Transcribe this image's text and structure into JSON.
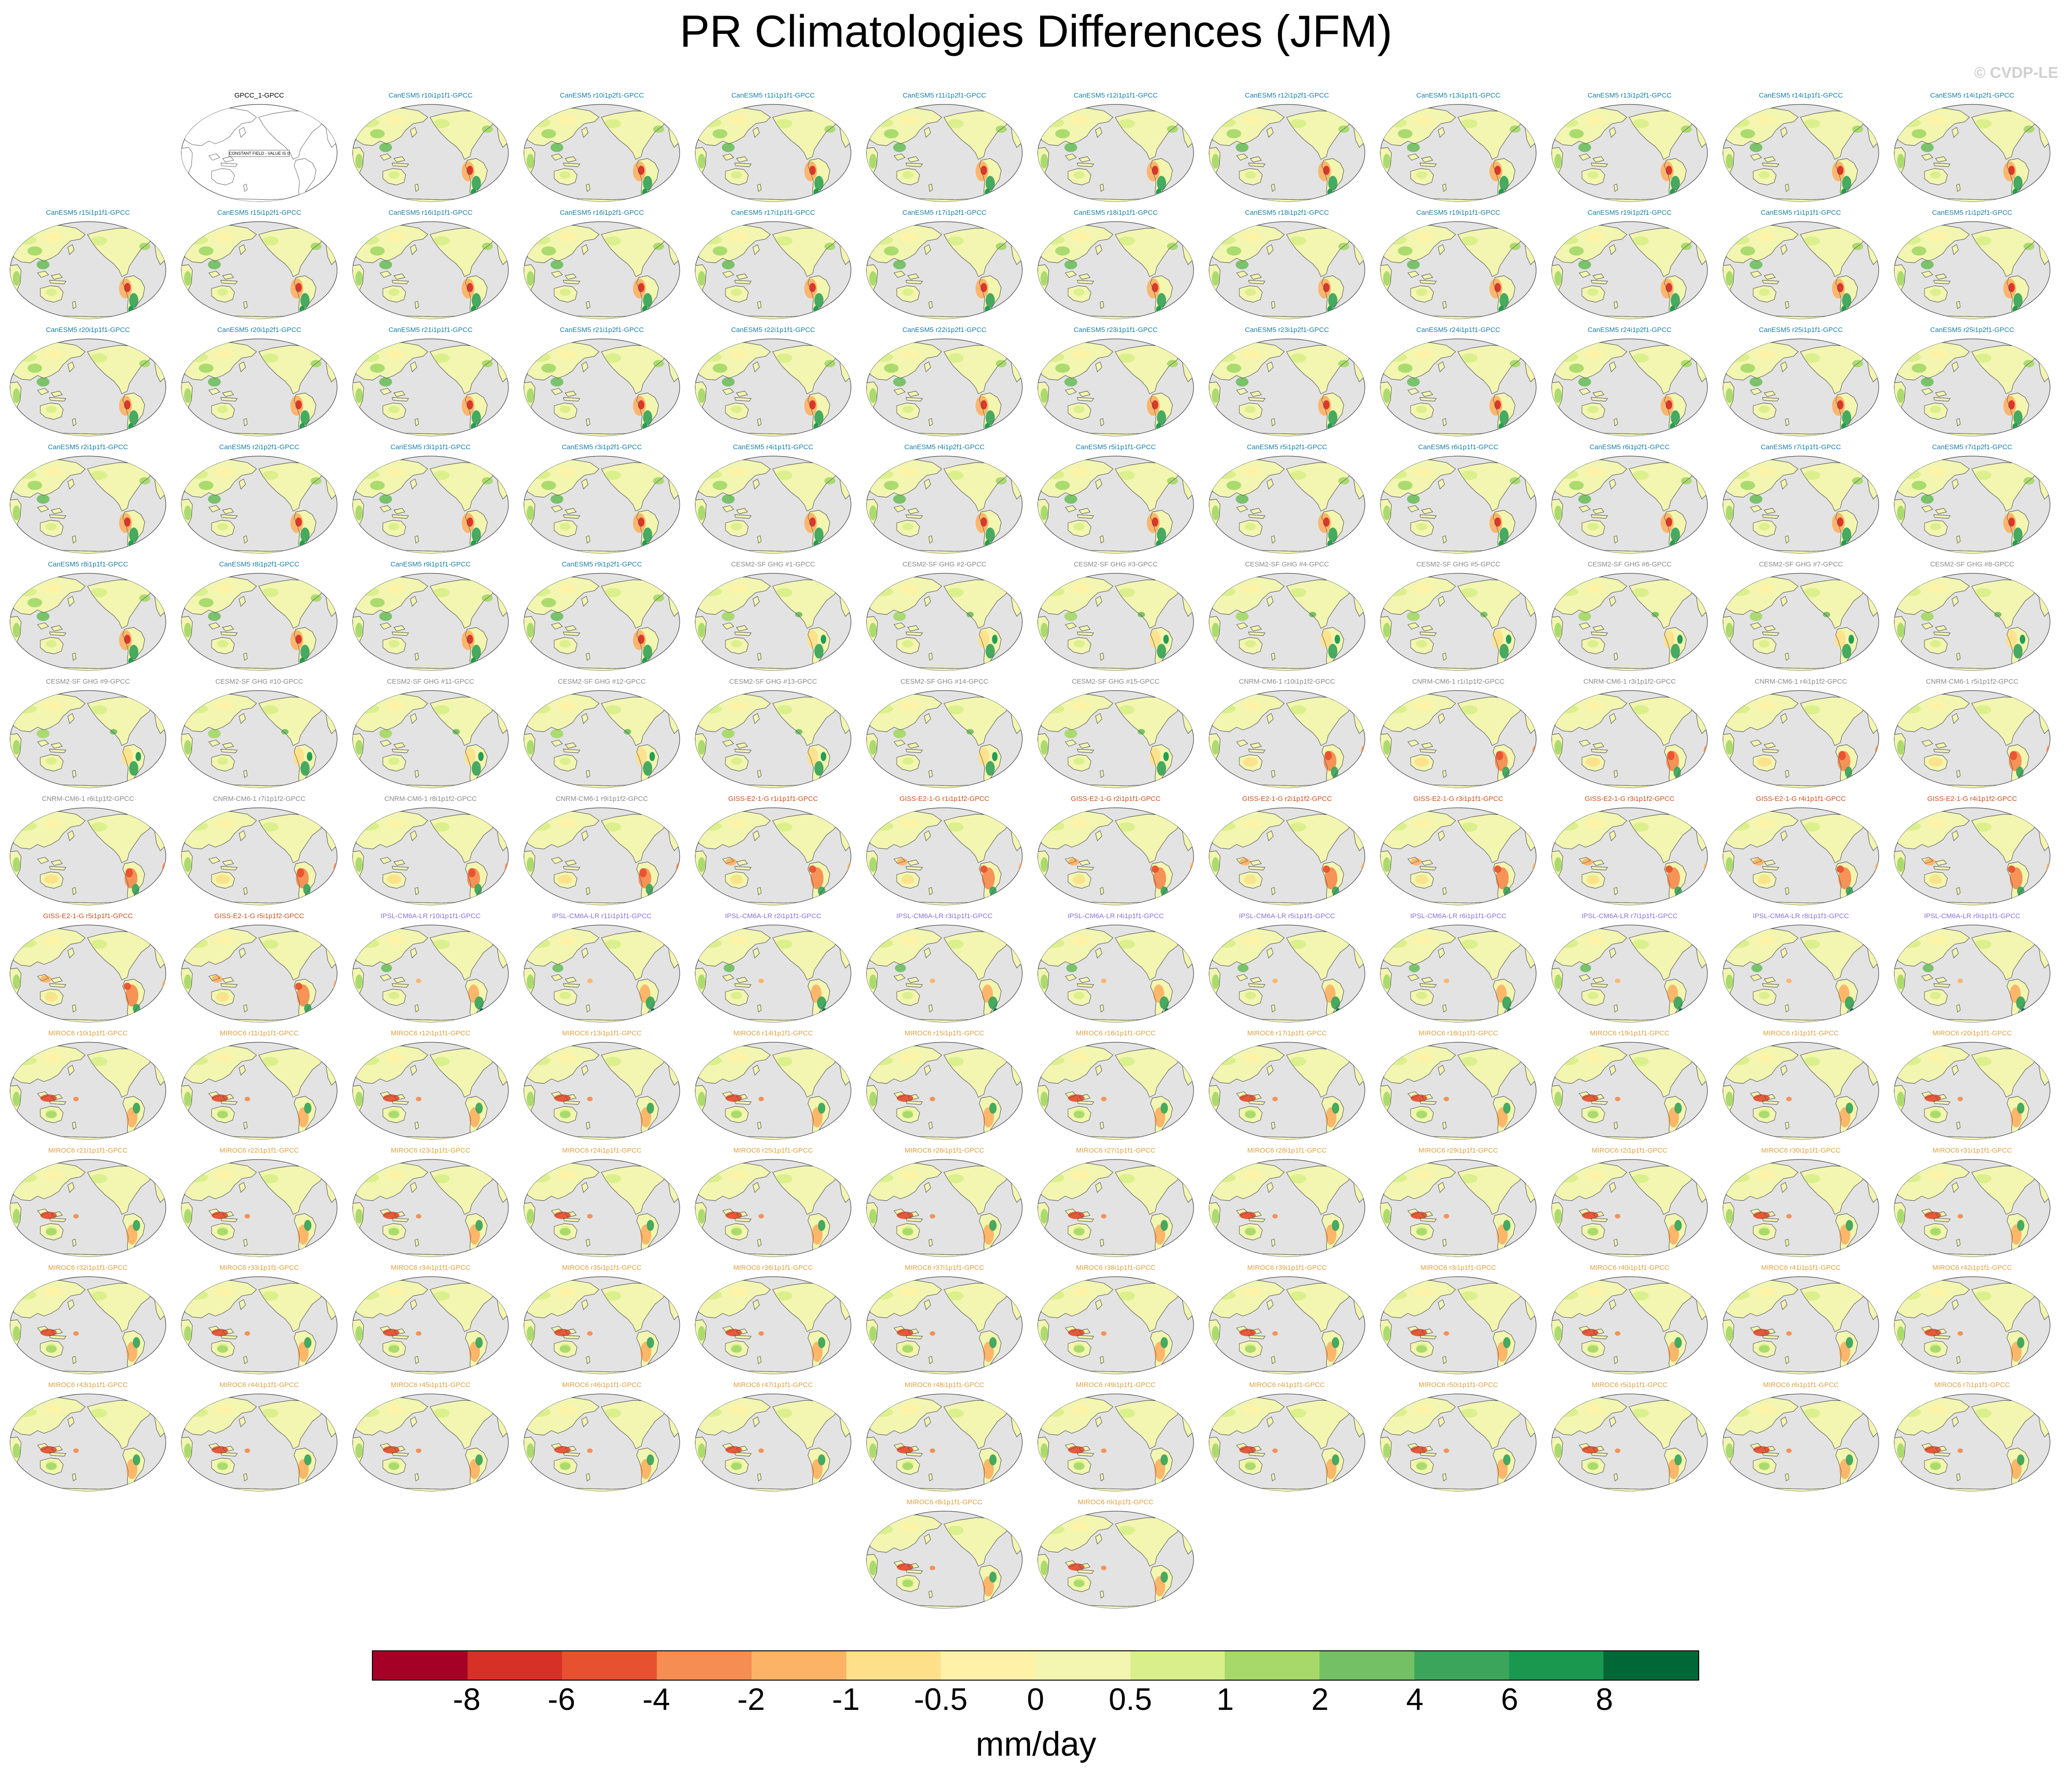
{
  "title": "PR Climatologies Differences (JFM)",
  "watermark": "© CVDP-LE",
  "colors": {
    "ocean": "#e3e3e3",
    "coast": "#555555",
    "model_title_colors": {
      "GPCC": "#000000",
      "CanESM5": "#1a7fa6",
      "CESM2-SF": "#8a8a8a",
      "CNRM-CM6-1": "#8a8a8a",
      "GISS-E2-1-G": "#c8501e",
      "IPSL-CM6A-LR": "#8a72d8",
      "MIROC6": "#e0a040"
    }
  },
  "chart_data": {
    "type": "heatmap",
    "description_units": "mm/day",
    "colorbar": {
      "unit_label": "mm/day",
      "tick_labels": [
        "-8",
        "-6",
        "-4",
        "-2",
        "-1",
        "-0.5",
        "0",
        "0.5",
        "1",
        "2",
        "4",
        "6",
        "8"
      ],
      "colors": [
        "#a50026",
        "#d73027",
        "#e8512f",
        "#f68d52",
        "#fdb366",
        "#fee08b",
        "#fff2a8",
        "#f2f6b0",
        "#d9ef8b",
        "#a6d96a",
        "#74c064",
        "#3ca55c",
        "#1a9850",
        "#006837"
      ]
    },
    "panels": [
      {
        "title": "GPCC_1-GPCC",
        "model": "GPCC",
        "annotation": "CONSTANT FIELD - VALUE IS 0"
      },
      {
        "title": "CanESM5 r10i1p1f1-GPCC",
        "model": "CanESM5"
      },
      {
        "title": "CanESM5 r10i1p2f1-GPCC",
        "model": "CanESM5"
      },
      {
        "title": "CanESM5 r11i1p1f1-GPCC",
        "model": "CanESM5"
      },
      {
        "title": "CanESM5 r11i1p2f1-GPCC",
        "model": "CanESM5"
      },
      {
        "title": "CanESM5 r12i1p1f1-GPCC",
        "model": "CanESM5"
      },
      {
        "title": "CanESM5 r12i1p2f1-GPCC",
        "model": "CanESM5"
      },
      {
        "title": "CanESM5 r13i1p1f1-GPCC",
        "model": "CanESM5"
      },
      {
        "title": "CanESM5 r13i1p2f1-GPCC",
        "model": "CanESM5"
      },
      {
        "title": "CanESM5 r14i1p1f1-GPCC",
        "model": "CanESM5"
      },
      {
        "title": "CanESM5 r14i1p2f1-GPCC",
        "model": "CanESM5"
      },
      {
        "title": "CanESM5 r15i1p1f1-GPCC",
        "model": "CanESM5"
      },
      {
        "title": "CanESM5 r15i1p2f1-GPCC",
        "model": "CanESM5"
      },
      {
        "title": "CanESM5 r16i1p1f1-GPCC",
        "model": "CanESM5"
      },
      {
        "title": "CanESM5 r16i1p2f1-GPCC",
        "model": "CanESM5"
      },
      {
        "title": "CanESM5 r17i1p1f1-GPCC",
        "model": "CanESM5"
      },
      {
        "title": "CanESM5 r17i1p2f1-GPCC",
        "model": "CanESM5"
      },
      {
        "title": "CanESM5 r18i1p1f1-GPCC",
        "model": "CanESM5"
      },
      {
        "title": "CanESM5 r18i1p2f1-GPCC",
        "model": "CanESM5"
      },
      {
        "title": "CanESM5 r19i1p1f1-GPCC",
        "model": "CanESM5"
      },
      {
        "title": "CanESM5 r19i1p2f1-GPCC",
        "model": "CanESM5"
      },
      {
        "title": "CanESM5 r1i1p1f1-GPCC",
        "model": "CanESM5"
      },
      {
        "title": "CanESM5 r1i1p2f1-GPCC",
        "model": "CanESM5"
      },
      {
        "title": "CanESM5 r20i1p1f1-GPCC",
        "model": "CanESM5"
      },
      {
        "title": "CanESM5 r20i1p2f1-GPCC",
        "model": "CanESM5"
      },
      {
        "title": "CanESM5 r21i1p1f1-GPCC",
        "model": "CanESM5"
      },
      {
        "title": "CanESM5 r21i1p2f1-GPCC",
        "model": "CanESM5"
      },
      {
        "title": "CanESM5 r22i1p1f1-GPCC",
        "model": "CanESM5"
      },
      {
        "title": "CanESM5 r22i1p2f1-GPCC",
        "model": "CanESM5"
      },
      {
        "title": "CanESM5 r23i1p1f1-GPCC",
        "model": "CanESM5"
      },
      {
        "title": "CanESM5 r23i1p2f1-GPCC",
        "model": "CanESM5"
      },
      {
        "title": "CanESM5 r24i1p1f1-GPCC",
        "model": "CanESM5"
      },
      {
        "title": "CanESM5 r24i1p2f1-GPCC",
        "model": "CanESM5"
      },
      {
        "title": "CanESM5 r25i1p1f1-GPCC",
        "model": "CanESM5"
      },
      {
        "title": "CanESM5 r25i1p2f1-GPCC",
        "model": "CanESM5"
      },
      {
        "title": "CanESM5 r2i1p1f1-GPCC",
        "model": "CanESM5"
      },
      {
        "title": "CanESM5 r2i1p2f1-GPCC",
        "model": "CanESM5"
      },
      {
        "title": "CanESM5 r3i1p1f1-GPCC",
        "model": "CanESM5"
      },
      {
        "title": "CanESM5 r3i1p2f1-GPCC",
        "model": "CanESM5"
      },
      {
        "title": "CanESM5 r4i1p1f1-GPCC",
        "model": "CanESM5"
      },
      {
        "title": "CanESM5 r4i1p2f1-GPCC",
        "model": "CanESM5"
      },
      {
        "title": "CanESM5 r5i1p1f1-GPCC",
        "model": "CanESM5"
      },
      {
        "title": "CanESM5 r5i1p2f1-GPCC",
        "model": "CanESM5"
      },
      {
        "title": "CanESM5 r6i1p1f1-GPCC",
        "model": "CanESM5"
      },
      {
        "title": "CanESM5 r6i1p2f1-GPCC",
        "model": "CanESM5"
      },
      {
        "title": "CanESM5 r7i1p1f1-GPCC",
        "model": "CanESM5"
      },
      {
        "title": "CanESM5 r7i1p2f1-GPCC",
        "model": "CanESM5"
      },
      {
        "title": "CanESM5 r8i1p1f1-GPCC",
        "model": "CanESM5"
      },
      {
        "title": "CanESM5 r8i1p2f1-GPCC",
        "model": "CanESM5"
      },
      {
        "title": "CanESM5 r9i1p1f1-GPCC",
        "model": "CanESM5"
      },
      {
        "title": "CanESM5 r9i1p2f1-GPCC",
        "model": "CanESM5"
      },
      {
        "title": "CESM2-SF GHG #1-GPCC",
        "model": "CESM2-SF"
      },
      {
        "title": "CESM2-SF GHG #2-GPCC",
        "model": "CESM2-SF"
      },
      {
        "title": "CESM2-SF GHG #3-GPCC",
        "model": "CESM2-SF"
      },
      {
        "title": "CESM2-SF GHG #4-GPCC",
        "model": "CESM2-SF"
      },
      {
        "title": "CESM2-SF GHG #5-GPCC",
        "model": "CESM2-SF"
      },
      {
        "title": "CESM2-SF GHG #6-GPCC",
        "model": "CESM2-SF"
      },
      {
        "title": "CESM2-SF GHG #7-GPCC",
        "model": "CESM2-SF"
      },
      {
        "title": "CESM2-SF GHG #8-GPCC",
        "model": "CESM2-SF"
      },
      {
        "title": "CESM2-SF GHG #9-GPCC",
        "model": "CESM2-SF"
      },
      {
        "title": "CESM2-SF GHG #10-GPCC",
        "model": "CESM2-SF"
      },
      {
        "title": "CESM2-SF GHG #11-GPCC",
        "model": "CESM2-SF"
      },
      {
        "title": "CESM2-SF GHG #12-GPCC",
        "model": "CESM2-SF"
      },
      {
        "title": "CESM2-SF GHG #13-GPCC",
        "model": "CESM2-SF"
      },
      {
        "title": "CESM2-SF GHG #14-GPCC",
        "model": "CESM2-SF"
      },
      {
        "title": "CESM2-SF GHG #15-GPCC",
        "model": "CESM2-SF"
      },
      {
        "title": "CNRM-CM6-1 r10i1p1f2-GPCC",
        "model": "CNRM-CM6-1"
      },
      {
        "title": "CNRM-CM6-1 r1i1p1f2-GPCC",
        "model": "CNRM-CM6-1"
      },
      {
        "title": "CNRM-CM6-1 r3i1p1f2-GPCC",
        "model": "CNRM-CM6-1"
      },
      {
        "title": "CNRM-CM6-1 r4i1p1f2-GPCC",
        "model": "CNRM-CM6-1"
      },
      {
        "title": "CNRM-CM6-1 r5i1p1f2-GPCC",
        "model": "CNRM-CM6-1"
      },
      {
        "title": "CNRM-CM6-1 r6i1p1f2-GPCC",
        "model": "CNRM-CM6-1"
      },
      {
        "title": "CNRM-CM6-1 r7i1p1f2-GPCC",
        "model": "CNRM-CM6-1"
      },
      {
        "title": "CNRM-CM6-1 r8i1p1f2-GPCC",
        "model": "CNRM-CM6-1"
      },
      {
        "title": "CNRM-CM6-1 r9i1p1f2-GPCC",
        "model": "CNRM-CM6-1"
      },
      {
        "title": "GISS-E2-1-G r1i1p1f1-GPCC",
        "model": "GISS-E2-1-G"
      },
      {
        "title": "GISS-E2-1-G r1i1p1f2-GPCC",
        "model": "GISS-E2-1-G"
      },
      {
        "title": "GISS-E2-1-G r2i1p1f1-GPCC",
        "model": "GISS-E2-1-G"
      },
      {
        "title": "GISS-E2-1-G r2i1p1f2-GPCC",
        "model": "GISS-E2-1-G"
      },
      {
        "title": "GISS-E2-1-G r3i1p1f1-GPCC",
        "model": "GISS-E2-1-G"
      },
      {
        "title": "GISS-E2-1-G r3i1p1f2-GPCC",
        "model": "GISS-E2-1-G"
      },
      {
        "title": "GISS-E2-1-G r4i1p1f1-GPCC",
        "model": "GISS-E2-1-G"
      },
      {
        "title": "GISS-E2-1-G r4i1p1f2-GPCC",
        "model": "GISS-E2-1-G"
      },
      {
        "title": "GISS-E2-1-G r5i1p1f1-GPCC",
        "model": "GISS-E2-1-G"
      },
      {
        "title": "GISS-E2-1-G r5i1p1f2-GPCC",
        "model": "GISS-E2-1-G"
      },
      {
        "title": "IPSL-CM6A-LR r10i1p1f1-GPCC",
        "model": "IPSL-CM6A-LR"
      },
      {
        "title": "IPSL-CM6A-LR r11i1p1f1-GPCC",
        "model": "IPSL-CM6A-LR"
      },
      {
        "title": "IPSL-CM6A-LR r2i1p1f1-GPCC",
        "model": "IPSL-CM6A-LR"
      },
      {
        "title": "IPSL-CM6A-LR r3i1p1f1-GPCC",
        "model": "IPSL-CM6A-LR"
      },
      {
        "title": "IPSL-CM6A-LR r4i1p1f1-GPCC",
        "model": "IPSL-CM6A-LR"
      },
      {
        "title": "IPSL-CM6A-LR r5i1p1f1-GPCC",
        "model": "IPSL-CM6A-LR"
      },
      {
        "title": "IPSL-CM6A-LR r6i1p1f1-GPCC",
        "model": "IPSL-CM6A-LR"
      },
      {
        "title": "IPSL-CM6A-LR r7i1p1f1-GPCC",
        "model": "IPSL-CM6A-LR"
      },
      {
        "title": "IPSL-CM6A-LR r8i1p1f1-GPCC",
        "model": "IPSL-CM6A-LR"
      },
      {
        "title": "IPSL-CM6A-LR r9i1p1f1-GPCC",
        "model": "IPSL-CM6A-LR"
      },
      {
        "title": "MIROC6 r10i1p1f1-GPCC",
        "model": "MIROC6"
      },
      {
        "title": "MIROC6 r11i1p1f1-GPCC",
        "model": "MIROC6"
      },
      {
        "title": "MIROC6 r12i1p1f1-GPCC",
        "model": "MIROC6"
      },
      {
        "title": "MIROC6 r13i1p1f1-GPCC",
        "model": "MIROC6"
      },
      {
        "title": "MIROC6 r14i1p1f1-GPCC",
        "model": "MIROC6"
      },
      {
        "title": "MIROC6 r15i1p1f1-GPCC",
        "model": "MIROC6"
      },
      {
        "title": "MIROC6 r16i1p1f1-GPCC",
        "model": "MIROC6"
      },
      {
        "title": "MIROC6 r17i1p1f1-GPCC",
        "model": "MIROC6"
      },
      {
        "title": "MIROC6 r18i1p1f1-GPCC",
        "model": "MIROC6"
      },
      {
        "title": "MIROC6 r19i1p1f1-GPCC",
        "model": "MIROC6"
      },
      {
        "title": "MIROC6 r1i1p1f1-GPCC",
        "model": "MIROC6"
      },
      {
        "title": "MIROC6 r20i1p1f1-GPCC",
        "model": "MIROC6"
      },
      {
        "title": "MIROC6 r21i1p1f1-GPCC",
        "model": "MIROC6"
      },
      {
        "title": "MIROC6 r22i1p1f1-GPCC",
        "model": "MIROC6"
      },
      {
        "title": "MIROC6 r23i1p1f1-GPCC",
        "model": "MIROC6"
      },
      {
        "title": "MIROC6 r24i1p1f1-GPCC",
        "model": "MIROC6"
      },
      {
        "title": "MIROC6 r25i1p1f1-GPCC",
        "model": "MIROC6"
      },
      {
        "title": "MIROC6 r26i1p1f1-GPCC",
        "model": "MIROC6"
      },
      {
        "title": "MIROC6 r27i1p1f1-GPCC",
        "model": "MIROC6"
      },
      {
        "title": "MIROC6 r28i1p1f1-GPCC",
        "model": "MIROC6"
      },
      {
        "title": "MIROC6 r29i1p1f1-GPCC",
        "model": "MIROC6"
      },
      {
        "title": "MIROC6 r2i1p1f1-GPCC",
        "model": "MIROC6"
      },
      {
        "title": "MIROC6 r30i1p1f1-GPCC",
        "model": "MIROC6"
      },
      {
        "title": "MIROC6 r31i1p1f1-GPCC",
        "model": "MIROC6"
      },
      {
        "title": "MIROC6 r32i1p1f1-GPCC",
        "model": "MIROC6"
      },
      {
        "title": "MIROC6 r33i1p1f1-GPCC",
        "model": "MIROC6"
      },
      {
        "title": "MIROC6 r34i1p1f1-GPCC",
        "model": "MIROC6"
      },
      {
        "title": "MIROC6 r35i1p1f1-GPCC",
        "model": "MIROC6"
      },
      {
        "title": "MIROC6 r36i1p1f1-GPCC",
        "model": "MIROC6"
      },
      {
        "title": "MIROC6 r37i1p1f1-GPCC",
        "model": "MIROC6"
      },
      {
        "title": "MIROC6 r38i1p1f1-GPCC",
        "model": "MIROC6"
      },
      {
        "title": "MIROC6 r39i1p1f1-GPCC",
        "model": "MIROC6"
      },
      {
        "title": "MIROC6 r3i1p1f1-GPCC",
        "model": "MIROC6"
      },
      {
        "title": "MIROC6 r40i1p1f1-GPCC",
        "model": "MIROC6"
      },
      {
        "title": "MIROC6 r41i1p1f1-GPCC",
        "model": "MIROC6"
      },
      {
        "title": "MIROC6 r42i1p1f1-GPCC",
        "model": "MIROC6"
      },
      {
        "title": "MIROC6 r43i1p1f1-GPCC",
        "model": "MIROC6"
      },
      {
        "title": "MIROC6 r44i1p1f1-GPCC",
        "model": "MIROC6"
      },
      {
        "title": "MIROC6 r45i1p1f1-GPCC",
        "model": "MIROC6"
      },
      {
        "title": "MIROC6 r46i1p1f1-GPCC",
        "model": "MIROC6"
      },
      {
        "title": "MIROC6 r47i1p1f1-GPCC",
        "model": "MIROC6"
      },
      {
        "title": "MIROC6 r48i1p1f1-GPCC",
        "model": "MIROC6"
      },
      {
        "title": "MIROC6 r49i1p1f1-GPCC",
        "model": "MIROC6"
      },
      {
        "title": "MIROC6 r4i1p1f1-GPCC",
        "model": "MIROC6"
      },
      {
        "title": "MIROC6 r50i1p1f1-GPCC",
        "model": "MIROC6"
      },
      {
        "title": "MIROC6 r5i1p1f1-GPCC",
        "model": "MIROC6"
      },
      {
        "title": "MIROC6 r6i1p1f1-GPCC",
        "model": "MIROC6"
      },
      {
        "title": "MIROC6 r7i1p1f1-GPCC",
        "model": "MIROC6"
      },
      {
        "title": "MIROC6 r8i1p1f1-GPCC",
        "model": "MIROC6"
      },
      {
        "title": "MIROC6 r9i1p1f1-GPCC",
        "model": "MIROC6"
      }
    ]
  }
}
